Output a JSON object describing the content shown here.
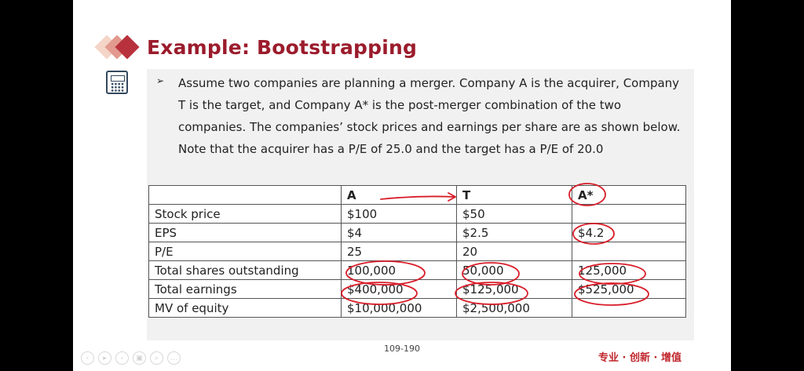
{
  "slide": {
    "title": "Example: Bootstrapping",
    "bullet_marker": "➢",
    "paragraph": "Assume two companies are planning a merger. Company A is the acquirer, Company T is the target, and Company A* is the post-merger combination of the two companies. The companies’ stock prices and earnings per share are as shown below. Note that the acquirer has a P/E of 25.0 and the target has a P/E of 20.0",
    "table": {
      "headers": [
        "",
        "A",
        "T",
        "A*"
      ],
      "rows": [
        [
          "Stock price",
          "$100",
          "$50",
          ""
        ],
        [
          "EPS",
          "$4",
          "$2.5",
          "$4.2"
        ],
        [
          "P/E",
          "25",
          "20",
          ""
        ],
        [
          "Total shares outstanding",
          "100,000",
          "50,000",
          "125,000"
        ],
        [
          "Total earnings",
          "$400,000",
          "$125,000",
          "$525,000"
        ],
        [
          "MV of equity",
          "$10,000,000",
          "$2,500,000",
          ""
        ]
      ]
    },
    "page_number": "109-190",
    "footer_slogan": "专业 · 创新 · 增值",
    "icons": [
      "calculator-icon",
      "title-diamonds-icon"
    ],
    "colors": {
      "title": "#9b1c2c",
      "ink": "#d81e2a",
      "slogan": "#c0272d"
    }
  },
  "player_controls": {
    "buttons": [
      {
        "name": "prev",
        "glyph": "‹"
      },
      {
        "name": "play",
        "glyph": "▸"
      },
      {
        "name": "next",
        "glyph": "›"
      },
      {
        "name": "copy",
        "glyph": "▣"
      },
      {
        "name": "zoom",
        "glyph": "⌕"
      },
      {
        "name": "more",
        "glyph": "…"
      }
    ]
  }
}
